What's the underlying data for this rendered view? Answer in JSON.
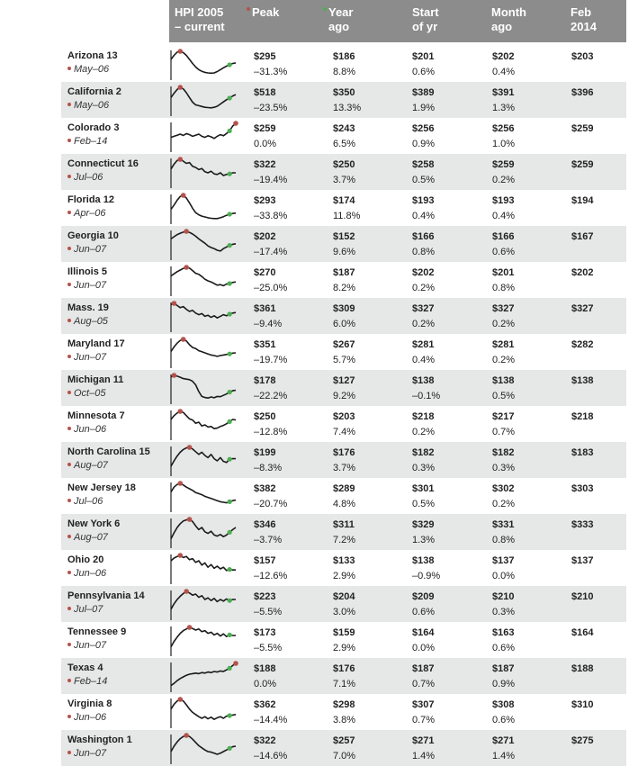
{
  "colors": {
    "header_bg": "#8c8c8c",
    "band": "#e6e7e7",
    "peak_dot": "#b5524c",
    "now_dot": "#4caf50"
  },
  "header": {
    "col_hpi": "HPI 2005\n– current",
    "col_peak": "Peak",
    "col_yearago": "Year\nago",
    "col_start": "Start\nof yr",
    "col_month": "Month\nago",
    "col_feb": "Feb\n2014"
  },
  "chart_data": {
    "type": "table",
    "columns": [
      "HPI 2005 – current",
      "Peak",
      "Year ago",
      "Start of yr",
      "Month ago",
      "Feb 2014"
    ],
    "rows": [
      {
        "state": "Arizona 13",
        "peak_date": "May–06",
        "peak": "$295",
        "peak_chg": "–31.3%",
        "yr": "$186",
        "yr_chg": "8.8%",
        "start": "$201",
        "start_chg": "0.6%",
        "month": "$202",
        "month_chg": "0.4%",
        "feb": "$203"
      },
      {
        "state": "California 2",
        "peak_date": "May–06",
        "peak": "$518",
        "peak_chg": "–23.5%",
        "yr": "$350",
        "yr_chg": "13.3%",
        "start": "$389",
        "start_chg": "1.9%",
        "month": "$391",
        "month_chg": "1.3%",
        "feb": "$396"
      },
      {
        "state": "Colorado 3",
        "peak_date": "Feb–14",
        "peak": "$259",
        "peak_chg": "0.0%",
        "yr": "$243",
        "yr_chg": "6.5%",
        "start": "$256",
        "start_chg": "0.9%",
        "month": "$256",
        "month_chg": "1.0%",
        "feb": "$259"
      },
      {
        "state": "Connecticut 16",
        "peak_date": "Jul–06",
        "peak": "$322",
        "peak_chg": "–19.4%",
        "yr": "$250",
        "yr_chg": "3.7%",
        "start": "$258",
        "start_chg": "0.5%",
        "month": "$259",
        "month_chg": "0.2%",
        "feb": "$259"
      },
      {
        "state": "Florida 12",
        "peak_date": "Apr–06",
        "peak": "$293",
        "peak_chg": "–33.8%",
        "yr": "$174",
        "yr_chg": "11.8%",
        "start": "$193",
        "start_chg": "0.4%",
        "month": "$193",
        "month_chg": "0.4%",
        "feb": "$194"
      },
      {
        "state": "Georgia 10",
        "peak_date": "Jun–07",
        "peak": "$202",
        "peak_chg": "–17.4%",
        "yr": "$152",
        "yr_chg": "9.6%",
        "start": "$166",
        "start_chg": "0.8%",
        "month": "$166",
        "month_chg": "0.6%",
        "feb": "$167"
      },
      {
        "state": "Illinois 5",
        "peak_date": "Jun–07",
        "peak": "$270",
        "peak_chg": "–25.0%",
        "yr": "$187",
        "yr_chg": "8.2%",
        "start": "$202",
        "start_chg": "0.2%",
        "month": "$201",
        "month_chg": "0.8%",
        "feb": "$202"
      },
      {
        "state": "Mass. 19",
        "peak_date": "Aug–05",
        "peak": "$361",
        "peak_chg": "–9.4%",
        "yr": "$309",
        "yr_chg": "6.0%",
        "start": "$327",
        "start_chg": "0.2%",
        "month": "$327",
        "month_chg": "0.2%",
        "feb": "$327"
      },
      {
        "state": "Maryland 17",
        "peak_date": "Jun–07",
        "peak": "$351",
        "peak_chg": "–19.7%",
        "yr": "$267",
        "yr_chg": "5.7%",
        "start": "$281",
        "start_chg": "0.4%",
        "month": "$281",
        "month_chg": "0.2%",
        "feb": "$282"
      },
      {
        "state": "Michigan 11",
        "peak_date": "Oct–05",
        "peak": "$178",
        "peak_chg": "–22.2%",
        "yr": "$127",
        "yr_chg": "9.2%",
        "start": "$138",
        "start_chg": "–0.1%",
        "month": "$138",
        "month_chg": "0.5%",
        "feb": "$138"
      },
      {
        "state": "Minnesota 7",
        "peak_date": "Jun–06",
        "peak": "$250",
        "peak_chg": "–12.8%",
        "yr": "$203",
        "yr_chg": "7.4%",
        "start": "$218",
        "start_chg": "0.2%",
        "month": "$217",
        "month_chg": "0.7%",
        "feb": "$218"
      },
      {
        "state": "North Carolina 15",
        "peak_date": "Aug–07",
        "peak": "$199",
        "peak_chg": "–8.3%",
        "yr": "$176",
        "yr_chg": "3.7%",
        "start": "$182",
        "start_chg": "0.3%",
        "month": "$182",
        "month_chg": "0.3%",
        "feb": "$183"
      },
      {
        "state": "New Jersey 18",
        "peak_date": "Jul–06",
        "peak": "$382",
        "peak_chg": "–20.7%",
        "yr": "$289",
        "yr_chg": "4.8%",
        "start": "$301",
        "start_chg": "0.5%",
        "month": "$302",
        "month_chg": "0.2%",
        "feb": "$303"
      },
      {
        "state": "New York 6",
        "peak_date": "Aug–07",
        "peak": "$346",
        "peak_chg": "–3.7%",
        "yr": "$311",
        "yr_chg": "7.2%",
        "start": "$329",
        "start_chg": "1.3%",
        "month": "$331",
        "month_chg": "0.8%",
        "feb": "$333"
      },
      {
        "state": "Ohio 20",
        "peak_date": "Jun–06",
        "peak": "$157",
        "peak_chg": "–12.6%",
        "yr": "$133",
        "yr_chg": "2.9%",
        "start": "$138",
        "start_chg": "–0.9%",
        "month": "$137",
        "month_chg": "0.0%",
        "feb": "$137"
      },
      {
        "state": "Pennsylvania 14",
        "peak_date": "Jul–07",
        "peak": "$223",
        "peak_chg": "–5.5%",
        "yr": "$204",
        "yr_chg": "3.0%",
        "start": "$209",
        "start_chg": "0.6%",
        "month": "$210",
        "month_chg": "0.3%",
        "feb": "$210"
      },
      {
        "state": "Tennessee 9",
        "peak_date": "Jun–07",
        "peak": "$173",
        "peak_chg": "–5.5%",
        "yr": "$159",
        "yr_chg": "2.9%",
        "start": "$164",
        "start_chg": "0.0%",
        "month": "$163",
        "month_chg": "0.6%",
        "feb": "$164"
      },
      {
        "state": "Texas 4",
        "peak_date": "Feb–14",
        "peak": "$188",
        "peak_chg": "0.0%",
        "yr": "$176",
        "yr_chg": "7.1%",
        "start": "$187",
        "start_chg": "0.7%",
        "month": "$187",
        "month_chg": "0.9%",
        "feb": "$188"
      },
      {
        "state": "Virginia 8",
        "peak_date": "Jun–06",
        "peak": "$362",
        "peak_chg": "–14.4%",
        "yr": "$298",
        "yr_chg": "3.8%",
        "start": "$307",
        "start_chg": "0.7%",
        "month": "$308",
        "month_chg": "0.6%",
        "feb": "$310"
      },
      {
        "state": "Washington 1",
        "peak_date": "Jun–07",
        "peak": "$322",
        "peak_chg": "–14.6%",
        "yr": "$257",
        "yr_chg": "7.0%",
        "start": "$271",
        "start_chg": "1.4%",
        "month": "$271",
        "month_chg": "1.4%",
        "feb": "$275"
      }
    ],
    "sparklines": [
      [
        0.7,
        0.85,
        0.97,
        1.0,
        0.95,
        0.85,
        0.7,
        0.55,
        0.42,
        0.32,
        0.26,
        0.22,
        0.2,
        0.19,
        0.2,
        0.25,
        0.32,
        0.39,
        0.45,
        0.5,
        0.55,
        0.57
      ],
      [
        0.62,
        0.78,
        0.92,
        1.0,
        0.94,
        0.8,
        0.62,
        0.45,
        0.35,
        0.32,
        0.29,
        0.26,
        0.25,
        0.24,
        0.26,
        0.3,
        0.38,
        0.46,
        0.54,
        0.6,
        0.68,
        0.73
      ],
      [
        0.48,
        0.52,
        0.56,
        0.6,
        0.55,
        0.62,
        0.58,
        0.52,
        0.56,
        0.6,
        0.52,
        0.48,
        0.54,
        0.5,
        0.44,
        0.52,
        0.58,
        0.54,
        0.62,
        0.72,
        0.9,
        1.0
      ],
      [
        0.64,
        0.82,
        0.96,
        1.0,
        0.93,
        0.85,
        0.88,
        0.74,
        0.7,
        0.62,
        0.66,
        0.54,
        0.5,
        0.56,
        0.46,
        0.44,
        0.5,
        0.4,
        0.44,
        0.46,
        0.5,
        0.5
      ],
      [
        0.48,
        0.64,
        0.82,
        0.96,
        1.0,
        0.9,
        0.72,
        0.52,
        0.36,
        0.28,
        0.23,
        0.2,
        0.17,
        0.15,
        0.14,
        0.14,
        0.17,
        0.21,
        0.26,
        0.3,
        0.33,
        0.34
      ],
      [
        0.72,
        0.8,
        0.88,
        0.93,
        0.97,
        1.0,
        0.96,
        0.9,
        0.82,
        0.72,
        0.64,
        0.56,
        0.46,
        0.4,
        0.36,
        0.3,
        0.27,
        0.36,
        0.42,
        0.48,
        0.52,
        0.54
      ],
      [
        0.68,
        0.76,
        0.84,
        0.9,
        0.96,
        1.0,
        0.97,
        0.88,
        0.78,
        0.74,
        0.66,
        0.56,
        0.5,
        0.46,
        0.4,
        0.34,
        0.36,
        0.32,
        0.38,
        0.4,
        0.44,
        0.46
      ],
      [
        0.95,
        1.0,
        0.92,
        0.84,
        0.88,
        0.78,
        0.7,
        0.74,
        0.64,
        0.58,
        0.62,
        0.52,
        0.56,
        0.48,
        0.54,
        0.46,
        0.52,
        0.58,
        0.54,
        0.6,
        0.64,
        0.66
      ],
      [
        0.55,
        0.72,
        0.86,
        0.96,
        1.0,
        0.94,
        0.8,
        0.7,
        0.66,
        0.58,
        0.54,
        0.5,
        0.46,
        0.42,
        0.4,
        0.37,
        0.4,
        0.42,
        0.44,
        0.46,
        0.49,
        0.5
      ],
      [
        0.94,
        1.0,
        0.97,
        0.93,
        0.88,
        0.86,
        0.84,
        0.78,
        0.65,
        0.4,
        0.22,
        0.18,
        0.16,
        0.2,
        0.17,
        0.22,
        0.21,
        0.26,
        0.31,
        0.38,
        0.43,
        0.45
      ],
      [
        0.7,
        0.84,
        0.94,
        1.0,
        0.96,
        0.84,
        0.72,
        0.68,
        0.56,
        0.6,
        0.46,
        0.5,
        0.42,
        0.44,
        0.36,
        0.38,
        0.44,
        0.48,
        0.54,
        0.62,
        0.7,
        0.68
      ],
      [
        0.3,
        0.5,
        0.68,
        0.82,
        0.92,
        0.98,
        1.0,
        0.94,
        0.84,
        0.74,
        0.82,
        0.7,
        0.62,
        0.74,
        0.58,
        0.5,
        0.62,
        0.48,
        0.44,
        0.56,
        0.58,
        0.58
      ],
      [
        0.68,
        0.86,
        0.96,
        1.0,
        0.94,
        0.86,
        0.8,
        0.74,
        0.66,
        0.62,
        0.58,
        0.52,
        0.48,
        0.44,
        0.4,
        0.36,
        0.32,
        0.3,
        0.28,
        0.32,
        0.36,
        0.38
      ],
      [
        0.28,
        0.5,
        0.7,
        0.84,
        0.94,
        0.98,
        1.0,
        0.92,
        0.76,
        0.62,
        0.7,
        0.54,
        0.48,
        0.56,
        0.42,
        0.38,
        0.44,
        0.36,
        0.42,
        0.52,
        0.62,
        0.7
      ],
      [
        0.8,
        0.9,
        0.96,
        1.0,
        0.92,
        0.96,
        0.84,
        0.88,
        0.74,
        0.8,
        0.64,
        0.72,
        0.56,
        0.66,
        0.52,
        0.6,
        0.5,
        0.56,
        0.44,
        0.48,
        0.46,
        0.46
      ],
      [
        0.34,
        0.54,
        0.7,
        0.82,
        0.92,
        1.0,
        0.94,
        0.86,
        0.9,
        0.78,
        0.84,
        0.7,
        0.76,
        0.66,
        0.74,
        0.62,
        0.7,
        0.64,
        0.72,
        0.66,
        0.7,
        0.7
      ],
      [
        0.28,
        0.48,
        0.64,
        0.78,
        0.88,
        0.94,
        1.0,
        0.96,
        0.9,
        0.94,
        0.84,
        0.88,
        0.78,
        0.82,
        0.72,
        0.78,
        0.68,
        0.76,
        0.66,
        0.72,
        0.7,
        0.7
      ],
      [
        0.18,
        0.26,
        0.36,
        0.44,
        0.5,
        0.56,
        0.6,
        0.62,
        0.64,
        0.62,
        0.66,
        0.64,
        0.68,
        0.66,
        0.7,
        0.68,
        0.72,
        0.7,
        0.76,
        0.82,
        0.92,
        1.0
      ],
      [
        0.64,
        0.82,
        0.94,
        1.0,
        0.94,
        0.8,
        0.64,
        0.52,
        0.44,
        0.36,
        0.3,
        0.36,
        0.28,
        0.34,
        0.26,
        0.32,
        0.36,
        0.3,
        0.38,
        0.4,
        0.42,
        0.44
      ],
      [
        0.4,
        0.6,
        0.76,
        0.88,
        0.96,
        1.0,
        0.96,
        0.86,
        0.74,
        0.62,
        0.54,
        0.46,
        0.4,
        0.38,
        0.34,
        0.3,
        0.34,
        0.4,
        0.46,
        0.52,
        0.58,
        0.6
      ]
    ],
    "peak_index": [
      3,
      3,
      21,
      3,
      4,
      5,
      5,
      1,
      4,
      1,
      3,
      6,
      3,
      6,
      3,
      5,
      6,
      21,
      3,
      5
    ],
    "now_index": [
      19,
      19,
      19,
      19,
      19,
      19,
      19,
      19,
      19,
      19,
      19,
      19,
      19,
      19,
      19,
      19,
      19,
      19,
      19,
      19
    ]
  }
}
